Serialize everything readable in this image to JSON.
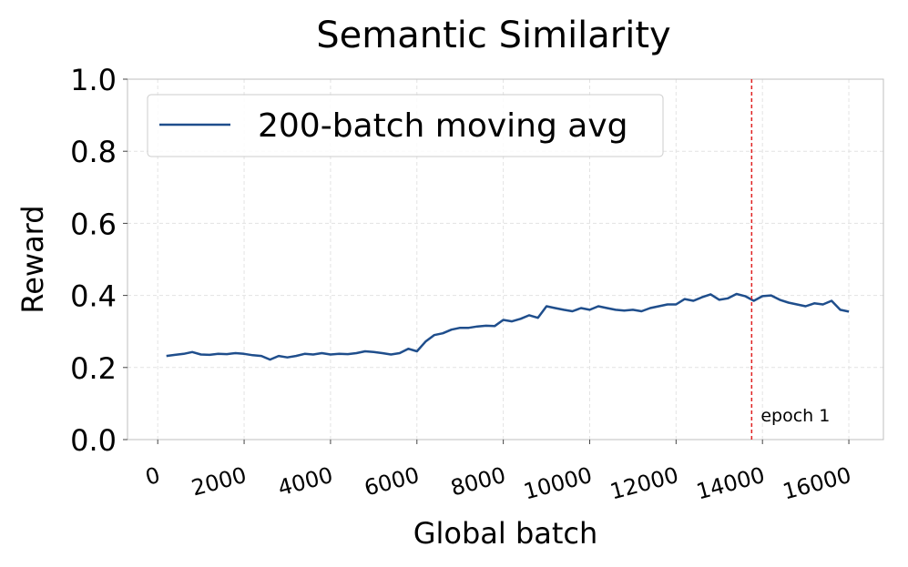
{
  "chart_data": {
    "type": "line",
    "title": "Semantic Similarity",
    "xlabel": "Global batch",
    "ylabel": "Reward",
    "xlim": [
      -700,
      16800
    ],
    "ylim": [
      0.0,
      1.0
    ],
    "xticks": [
      0,
      2000,
      4000,
      6000,
      8000,
      10000,
      12000,
      14000,
      16000
    ],
    "xtick_labels": [
      "0",
      "2000",
      "4000",
      "6000",
      "8000",
      "10000",
      "12000",
      "14000",
      "16000"
    ],
    "yticks": [
      0.0,
      0.2,
      0.4,
      0.6,
      0.8,
      1.0
    ],
    "ytick_labels": [
      "0.0",
      "0.2",
      "0.4",
      "0.6",
      "0.8",
      "1.0"
    ],
    "grid": true,
    "legend": {
      "position": "top-left",
      "entries": [
        "200-batch moving avg"
      ]
    },
    "series": [
      {
        "name": "200-batch moving avg",
        "color": "#1f4e8c",
        "x": [
          200,
          400,
          600,
          800,
          1000,
          1200,
          1400,
          1600,
          1800,
          2000,
          2200,
          2400,
          2600,
          2800,
          3000,
          3200,
          3400,
          3600,
          3800,
          4000,
          4200,
          4400,
          4600,
          4800,
          5000,
          5200,
          5400,
          5600,
          5800,
          6000,
          6200,
          6400,
          6600,
          6800,
          7000,
          7200,
          7400,
          7600,
          7800,
          8000,
          8200,
          8400,
          8600,
          8800,
          9000,
          9200,
          9400,
          9600,
          9800,
          10000,
          10200,
          10400,
          10600,
          10800,
          11000,
          11200,
          11400,
          11600,
          11800,
          12000,
          12200,
          12400,
          12600,
          12800,
          13000,
          13200,
          13400,
          13600,
          13800,
          14000,
          14200,
          14400,
          14600,
          14800,
          15000,
          15200,
          15400,
          15600,
          15800,
          16000
        ],
        "y": [
          0.232,
          0.235,
          0.238,
          0.243,
          0.236,
          0.235,
          0.238,
          0.237,
          0.24,
          0.238,
          0.234,
          0.232,
          0.222,
          0.232,
          0.228,
          0.232,
          0.238,
          0.236,
          0.24,
          0.236,
          0.238,
          0.237,
          0.24,
          0.245,
          0.243,
          0.24,
          0.236,
          0.24,
          0.252,
          0.245,
          0.272,
          0.29,
          0.295,
          0.305,
          0.31,
          0.31,
          0.314,
          0.316,
          0.315,
          0.332,
          0.328,
          0.335,
          0.345,
          0.338,
          0.37,
          0.365,
          0.36,
          0.356,
          0.365,
          0.36,
          0.37,
          0.365,
          0.36,
          0.358,
          0.36,
          0.356,
          0.365,
          0.37,
          0.375,
          0.375,
          0.39,
          0.385,
          0.395,
          0.403,
          0.388,
          0.392,
          0.404,
          0.398,
          0.385,
          0.398,
          0.4,
          0.388,
          0.38,
          0.375,
          0.37,
          0.378,
          0.375,
          0.385,
          0.36,
          0.355
        ]
      }
    ],
    "annotations": [
      {
        "type": "vline",
        "x": 13750,
        "color": "#e02020",
        "style": "dashed",
        "label": "epoch 1"
      }
    ]
  }
}
